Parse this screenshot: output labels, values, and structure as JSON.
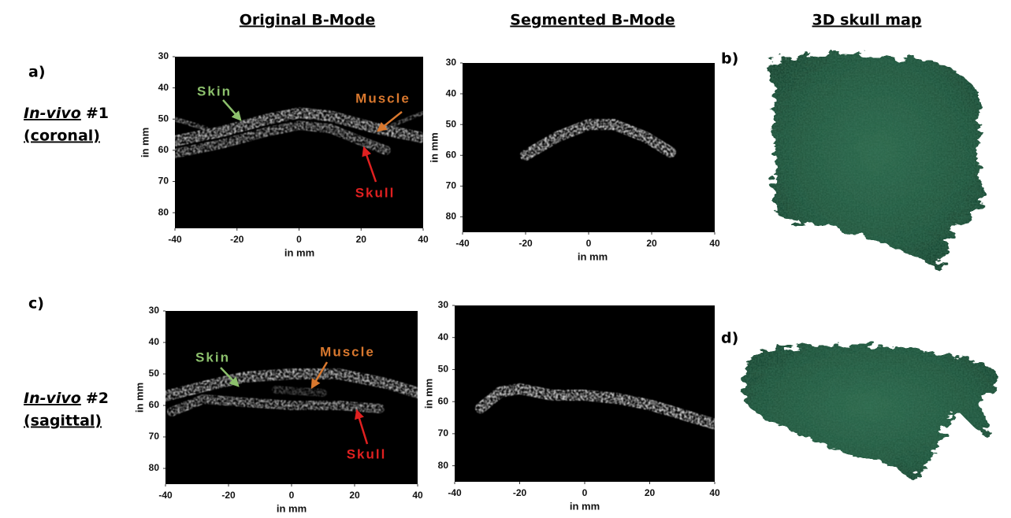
{
  "headers": [
    "Original B-Mode",
    "Segmented B-Mode",
    "3D skull map"
  ],
  "rows": [
    {
      "label": "a)",
      "title_italic": "In-vivo",
      "title_rest": "#1",
      "subtitle": "(coronal)",
      "map_label": "b)"
    },
    {
      "label": "c)",
      "title_italic": "In-vivo",
      "title_rest": "#2",
      "subtitle": "(sagittal)",
      "map_label": "d)"
    }
  ],
  "plots": [
    {
      "x_label": "in mm",
      "y_label": "in mm",
      "xlim": [
        -40,
        40
      ],
      "ylim": [
        30,
        85
      ],
      "xticks": [
        -40,
        -20,
        0,
        20,
        40
      ],
      "yticks": [
        30,
        40,
        50,
        60,
        70,
        80
      ],
      "annotations": [
        {
          "text": "Skin",
          "color": "#8cc06c"
        },
        {
          "text": "Muscle",
          "color": "#d9782e"
        },
        {
          "text": "Skull",
          "color": "#e02020"
        }
      ]
    },
    {
      "x_label": "in mm",
      "y_label": "in mm",
      "xlim": [
        -40,
        40
      ],
      "ylim": [
        30,
        85
      ],
      "xticks": [
        -40,
        -20,
        0,
        20,
        40
      ],
      "yticks": [
        30,
        40,
        50,
        60,
        70,
        80
      ],
      "annotations": []
    },
    {
      "x_label": "in mm",
      "y_label": "in mm",
      "xlim": [
        -40,
        40
      ],
      "ylim": [
        30,
        85
      ],
      "xticks": [
        -40,
        -20,
        0,
        20,
        40
      ],
      "yticks": [
        30,
        40,
        50,
        60,
        70,
        80
      ],
      "annotations": [
        {
          "text": "Skin",
          "color": "#8cc06c"
        },
        {
          "text": "Muscle",
          "color": "#d9782e"
        },
        {
          "text": "Skull",
          "color": "#e02020"
        }
      ]
    },
    {
      "x_label": "in mm",
      "y_label": "in mm",
      "xlim": [
        -40,
        40
      ],
      "ylim": [
        30,
        85
      ],
      "xticks": [
        -40,
        -20,
        0,
        20,
        40
      ],
      "yticks": [
        30,
        40,
        50,
        60,
        70,
        80
      ],
      "annotations": []
    }
  ]
}
